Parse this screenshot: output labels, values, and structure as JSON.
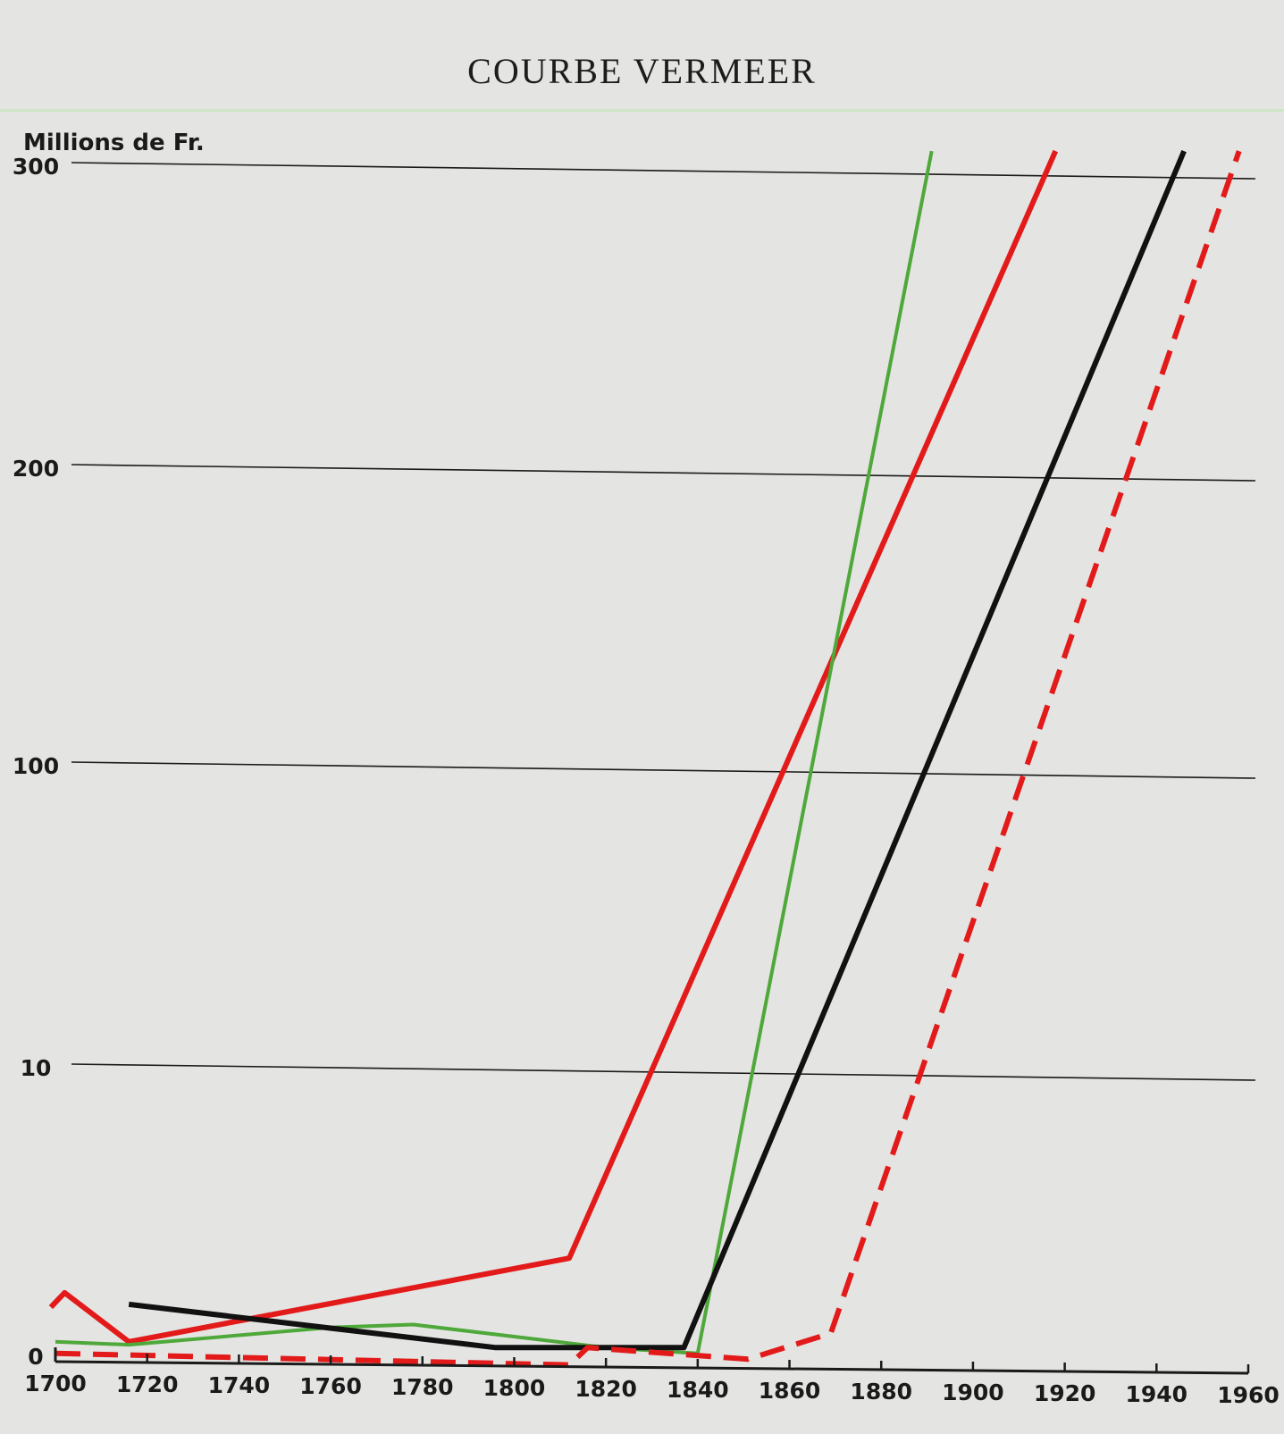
{
  "chart_data": {
    "type": "line",
    "title": "COURBE VERMEER",
    "ylabel": "Millions de Fr.",
    "xlabel": "",
    "x_ticks": [
      "1700",
      "1720",
      "1740",
      "1760",
      "1780",
      "1800",
      "1820",
      "1840",
      "1860",
      "1880",
      "1900",
      "1920",
      "1940",
      "1960"
    ],
    "y_ticks": [
      "0",
      "10",
      "100",
      "200",
      "300"
    ],
    "y_scale": "custom-piecewise (0, 10, 100, 200, 300 equally spaced)",
    "xlim": [
      1700,
      1960
    ],
    "ylim": [
      0,
      300
    ],
    "grid": "horizontal",
    "legend": "none",
    "series": [
      {
        "color": "#e21a1a",
        "style": "solid",
        "points": [
          [
            1699,
            1.7
          ],
          [
            1702,
            2.2
          ],
          [
            1716,
            0.5
          ],
          [
            1812,
            3.4
          ],
          [
            1918,
            305
          ]
        ]
      },
      {
        "color": "#4ea83a",
        "style": "solid",
        "points": [
          [
            1700,
            0.5
          ],
          [
            1716,
            0.4
          ],
          [
            1760,
            1.0
          ],
          [
            1778,
            1.1
          ],
          [
            1820,
            0.3
          ],
          [
            1840,
            0.1
          ],
          [
            1891,
            305
          ]
        ]
      },
      {
        "color": "#111111",
        "style": "solid",
        "points": [
          [
            1716,
            1.8
          ],
          [
            1796,
            0.3
          ],
          [
            1837,
            0.3
          ],
          [
            1946,
            305
          ]
        ]
      },
      {
        "color": "#e21a1a",
        "style": "dashed",
        "points": [
          [
            1700,
            0.1
          ],
          [
            1812,
            -0.3
          ],
          [
            1816,
            0.3
          ],
          [
            1851,
            -0.1
          ],
          [
            1869,
            0.8
          ],
          [
            1958,
            305
          ]
        ]
      }
    ]
  }
}
